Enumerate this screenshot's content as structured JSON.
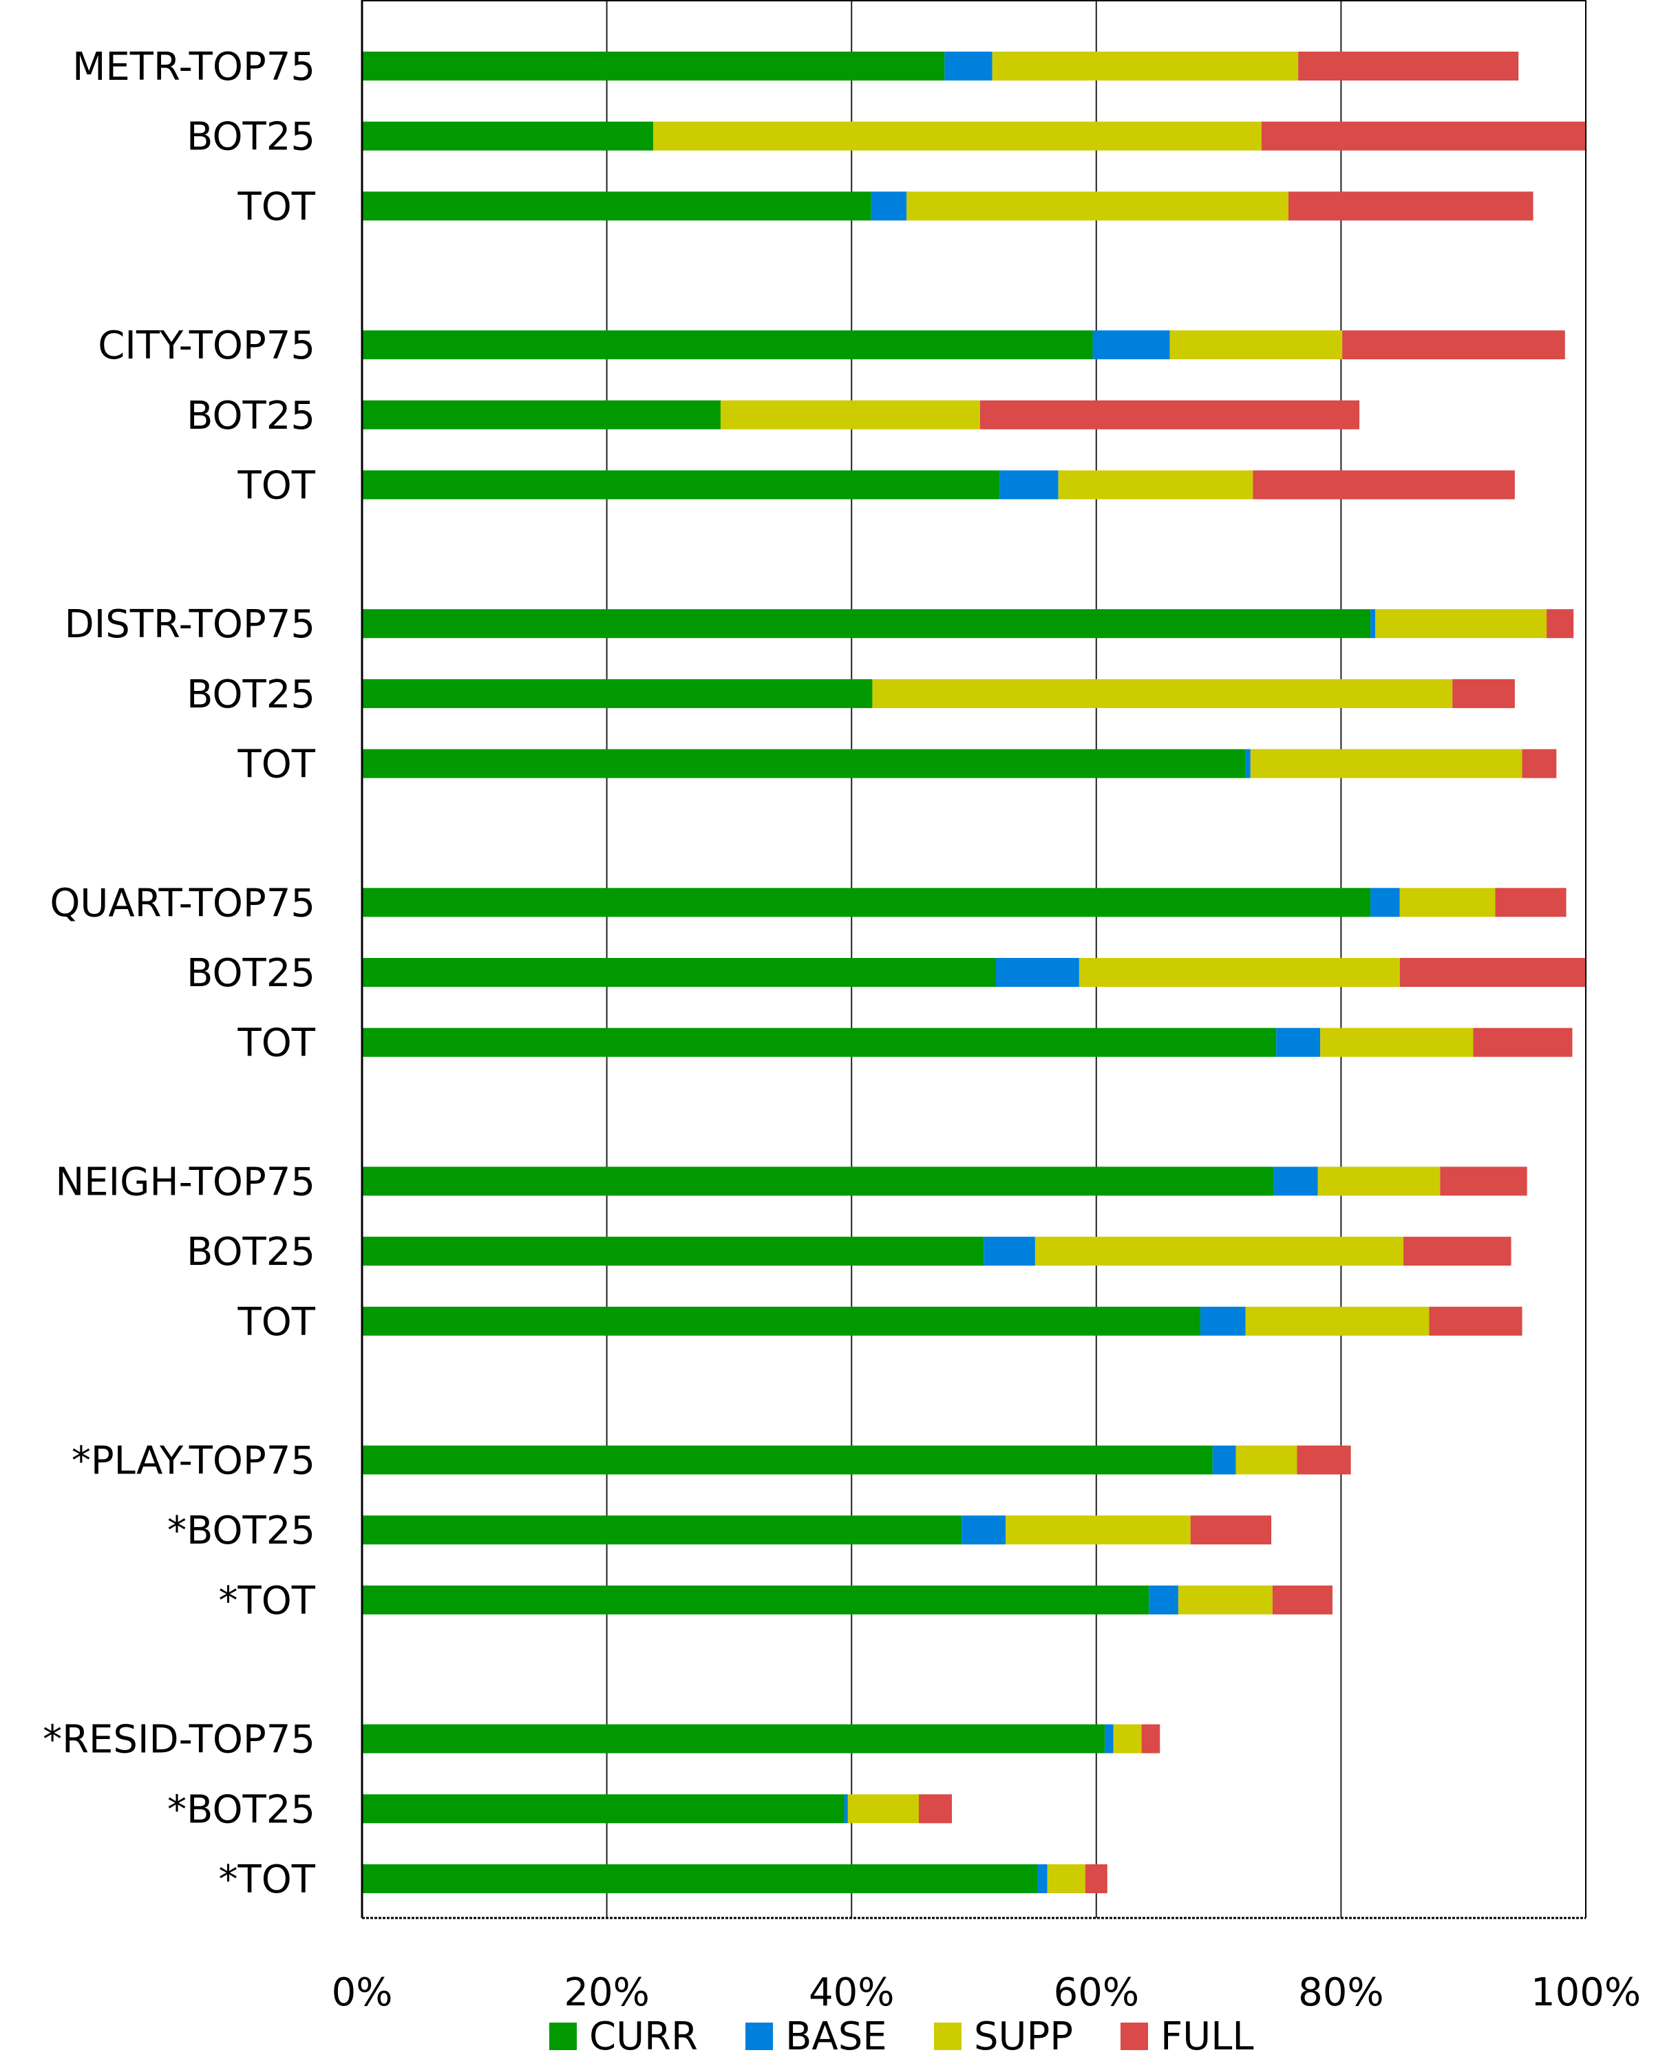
{
  "chart_data": {
    "type": "bar",
    "orientation": "horizontal",
    "stacked": true,
    "title": "",
    "xlabel": "",
    "ylabel": "",
    "xlim": [
      0,
      100
    ],
    "x_ticks": [
      "0%",
      "20%",
      "40%",
      "60%",
      "80%",
      "100%"
    ],
    "grid": "vertical",
    "legend_position": "bottom",
    "categories": [
      "METR-TOP75",
      "BOT25",
      "TOT",
      "CITY-TOP75",
      "BOT25",
      "TOT",
      "DISTR-TOP75",
      "BOT25",
      "TOT",
      "QUART-TOP75",
      "BOT25",
      "TOT",
      "NEIGH-TOP75",
      "BOT25",
      "TOT",
      "*PLAY-TOP75",
      "*BOT25",
      "*TOT",
      "*RESID-TOP75",
      "*BOT25",
      "*TOT"
    ],
    "series": [
      {
        "name": "CURR",
        "color": "#009900",
        "values": [
          47.6,
          23.8,
          41.6,
          59.7,
          29.3,
          52.1,
          82.4,
          41.7,
          72.2,
          82.4,
          51.8,
          74.7,
          74.5,
          50.8,
          68.5,
          69.5,
          49.0,
          64.3,
          60.7,
          39.4,
          55.2
        ]
      },
      {
        "name": "BASE",
        "color": "#0080DD",
        "values": [
          3.9,
          0,
          2.9,
          6.3,
          0,
          4.8,
          0.4,
          0,
          0.4,
          2.4,
          6.8,
          3.6,
          3.6,
          4.2,
          3.7,
          1.9,
          3.6,
          2.4,
          0.7,
          0.3,
          0.8
        ]
      },
      {
        "name": "SUPP",
        "color": "#CCCC00",
        "values": [
          25.0,
          49.7,
          31.2,
          14.1,
          21.2,
          15.9,
          14.0,
          47.4,
          22.2,
          7.8,
          26.2,
          12.5,
          10.0,
          30.1,
          15.0,
          5.0,
          15.1,
          7.7,
          2.3,
          5.8,
          3.1
        ]
      },
      {
        "name": "FULL",
        "color": "#D94A48",
        "values": [
          18.0,
          26.5,
          20.0,
          18.2,
          31.0,
          21.4,
          2.2,
          5.1,
          2.8,
          5.8,
          15.2,
          8.1,
          7.1,
          8.8,
          7.6,
          4.4,
          6.6,
          4.9,
          1.5,
          2.7,
          1.8
        ]
      }
    ]
  }
}
